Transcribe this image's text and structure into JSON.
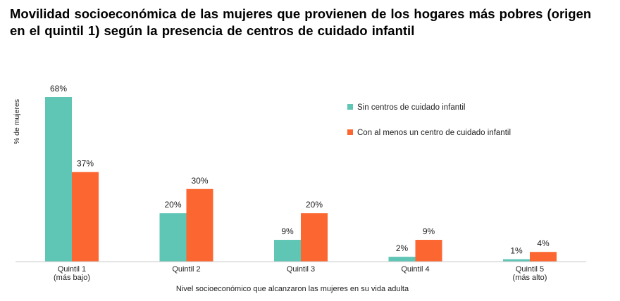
{
  "title": "Movilidad socioeconómica de las mujeres que provienen de los hogares más pobres (origen en el quintil 1) según la presencia de centros de cuidado infantil",
  "chart_data": {
    "type": "bar",
    "title": "Movilidad socioeconómica de las mujeres que provienen de los hogares más pobres (origen en el quintil 1) según la presencia de centros de cuidado infantil",
    "xlabel": "Nivel socioeconómico que alcanzaron las mujeres en su vida adulta",
    "ylabel": "% de mujeres",
    "ylim": [
      0,
      70
    ],
    "grid": false,
    "legend_position": "top-right",
    "categories": [
      [
        "Quintil 1",
        "(más bajo)"
      ],
      [
        "Quintil 2"
      ],
      [
        "Quintil 3"
      ],
      [
        "Quintil 4"
      ],
      [
        "Quintil 5",
        "(más alto)"
      ]
    ],
    "series": [
      {
        "name": "Sin centros de cuidado infantil",
        "color": "#5fc5b5",
        "values": [
          68,
          20,
          9,
          2,
          1
        ],
        "labels": [
          "68%",
          "20%",
          "9%",
          "2%",
          "1%"
        ]
      },
      {
        "name": "Con al menos un centro de cuidado infantil",
        "color": "#fb6631",
        "values": [
          37,
          30,
          20,
          9,
          4
        ],
        "labels": [
          "37%",
          "30%",
          "20%",
          "9%",
          "4%"
        ]
      }
    ]
  }
}
